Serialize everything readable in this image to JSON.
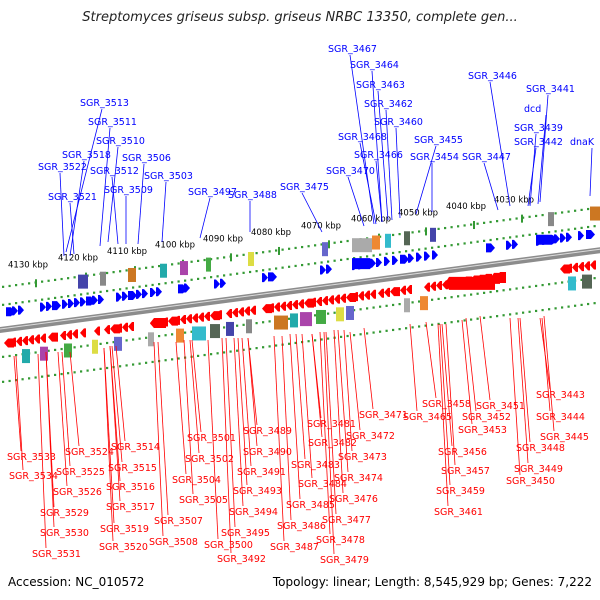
{
  "title": "Streptomyces griseus subsp. griseus NRBC 13350, complete gen...",
  "accession": "Accession: NC_010572",
  "topology": "Topology: linear; Length: 8,545,929 bp; Genes: 7,222",
  "colors": {
    "forward": "#0000ff",
    "reverse": "#ff0000",
    "axis": "#888888",
    "tick": "#339933"
  },
  "kbp_ticks": [
    "4130 kbp",
    "4120 kbp",
    "4110 kbp",
    "4100 kbp",
    "4090 kbp",
    "4080 kbp",
    "4070 kbp",
    "4060 kbp",
    "4050 kbp",
    "4040 kbp",
    "4030 kbp"
  ],
  "top_labels": [
    "SGR_3513",
    "SGR_3511",
    "SGR_3510",
    "SGR_3518",
    "SGR_3506",
    "SGR_3522",
    "SGR_3512",
    "SGR_3503",
    "SGR_3509",
    "SGR_3521",
    "SGR_3497",
    "SGR_3488",
    "SGR_3475",
    "SGR_3467",
    "SGR_3464",
    "SGR_3463",
    "SGR_3462",
    "SGR_3460",
    "SGR_3468",
    "SGR_3455",
    "SGR_3466",
    "SGR_3454",
    "SGR_3470",
    "SGR_3446",
    "SGR_3441",
    "dcd",
    "SGR_3439",
    "SGR_3442",
    "SGR_3447",
    "dnaK"
  ],
  "bottom_labels": [
    "SGR_3443",
    "SGR_3458",
    "SGR_3451",
    "SGR_3444",
    "SGR_3465",
    "SGR_3452",
    "SGR_3453",
    "SGR_3445",
    "SGR_3481",
    "SGR_3471",
    "SGR_3501",
    "SGR_3489",
    "SGR_3482",
    "SGR_3472",
    "SGR_3456",
    "SGR_3448",
    "SGR_3524",
    "SGR_3514",
    "SGR_3490",
    "SGR_3533",
    "SGR_3502",
    "SGR_3473",
    "SGR_3449",
    "SGR_3525",
    "SGR_3515",
    "SGR_3491",
    "SGR_3483",
    "SGR_3457",
    "SGR_3534",
    "SGR_3504",
    "SGR_3474",
    "SGR_3450",
    "SGR_3516",
    "SGR_3484",
    "SGR_3526",
    "SGR_3493",
    "SGR_3476",
    "SGR_3459",
    "SGR_3505",
    "SGR_3485",
    "SGR_3517",
    "SGR_3529",
    "SGR_3494",
    "SGR_3461",
    "SGR_3477",
    "SGR_3507",
    "SGR_3486",
    "SGR_3519",
    "SGR_3495",
    "SGR_3530",
    "SGR_3478",
    "SGR_3508",
    "SGR_3500",
    "SGR_3487",
    "SGR_3520",
    "SGR_3531",
    "SGR_3492",
    "SGR_3479"
  ]
}
